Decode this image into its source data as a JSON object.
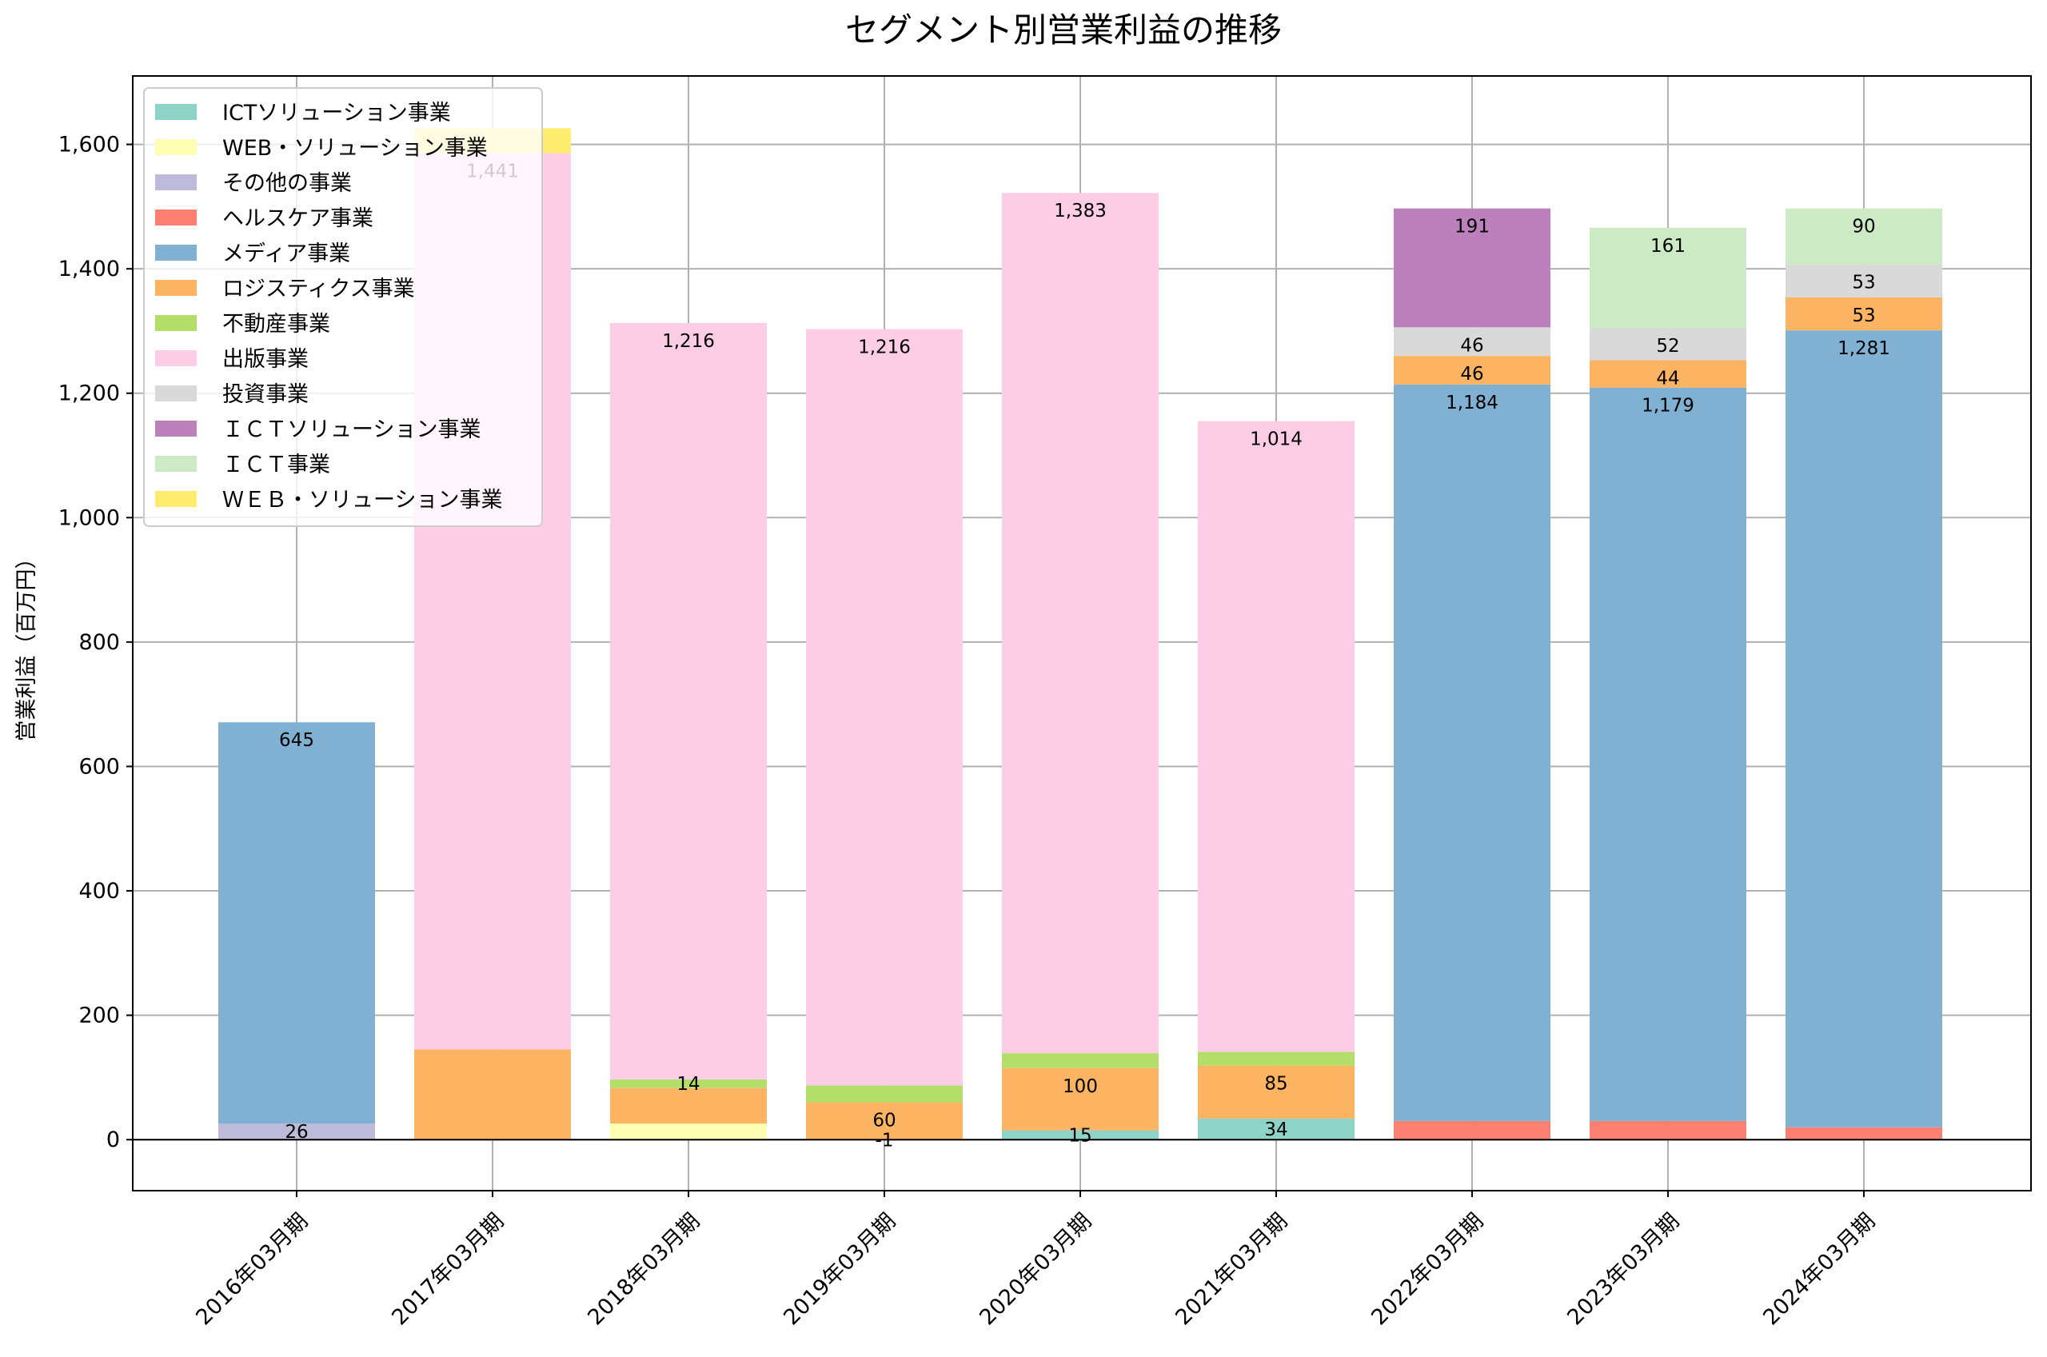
{
  "chart_data": {
    "type": "bar",
    "stacked": true,
    "title": "セグメント別営業利益の推移",
    "xlabel": "",
    "ylabel": "営業利益（百万円）",
    "ylim": [
      -82,
      1710
    ],
    "yticks": [
      0,
      200,
      400,
      600,
      800,
      1000,
      1200,
      1400,
      1600
    ],
    "ytick_labels": [
      "0",
      "200",
      "400",
      "600",
      "800",
      "1,000",
      "1,200",
      "1,400",
      "1,600"
    ],
    "grid": true,
    "legend_position": "top-left",
    "categories": [
      "2016年03月期",
      "2017年03月期",
      "2018年03月期",
      "2019年03月期",
      "2020年03月期",
      "2021年03月期",
      "2022年03月期",
      "2023年03月期",
      "2024年03月期"
    ],
    "series": [
      {
        "name": "ICTソリューション事業",
        "color": "#8dd3c7",
        "values": [
          0,
          0,
          0,
          0,
          15,
          34,
          0,
          0,
          0
        ]
      },
      {
        "name": "WEB・ソリューション事業",
        "color": "#ffffb3",
        "values": [
          0,
          0,
          26,
          -1,
          0,
          0,
          0,
          0,
          0
        ]
      },
      {
        "name": "その他の事業",
        "color": "#bebada",
        "values": [
          26,
          0,
          0,
          0,
          0,
          0,
          0,
          0,
          0
        ]
      },
      {
        "name": "ヘルスケア事業",
        "color": "#fb8072",
        "values": [
          0,
          0,
          0,
          0,
          0,
          0,
          30,
          30,
          20
        ]
      },
      {
        "name": "メディア事業",
        "color": "#80b1d3",
        "values": [
          645,
          0,
          0,
          0,
          0,
          0,
          1184,
          1179,
          1281
        ]
      },
      {
        "name": "ロジスティクス事業",
        "color": "#fdb462",
        "values": [
          0,
          145,
          57,
          60,
          100,
          85,
          46,
          44,
          53
        ]
      },
      {
        "name": "不動産事業",
        "color": "#b3de69",
        "values": [
          0,
          0,
          14,
          27,
          24,
          22,
          0,
          0,
          0
        ]
      },
      {
        "name": "出版事業",
        "color": "#fccde5",
        "values": [
          0,
          1441,
          1216,
          1216,
          1383,
          1014,
          0,
          0,
          0
        ]
      },
      {
        "name": "投資事業",
        "color": "#d9d9d9",
        "values": [
          0,
          0,
          0,
          0,
          0,
          0,
          46,
          52,
          53
        ]
      },
      {
        "name": "ＩＣＴソリューション事業",
        "color": "#bc80bd",
        "values": [
          0,
          0,
          0,
          0,
          0,
          0,
          191,
          0,
          0
        ]
      },
      {
        "name": "ＩＣＴ事業",
        "color": "#ccebc5",
        "values": [
          0,
          0,
          0,
          0,
          0,
          0,
          0,
          161,
          90
        ]
      },
      {
        "name": "ＷＥＢ・ソリューション事業",
        "color": "#ffed6f",
        "values": [
          0,
          40,
          0,
          0,
          0,
          0,
          0,
          0,
          0
        ]
      }
    ],
    "data_labels": [
      {
        "category": 0,
        "series": 2,
        "text": "26"
      },
      {
        "category": 0,
        "series": 4,
        "text": "645"
      },
      {
        "category": 1,
        "series": 7,
        "text": "1,441"
      },
      {
        "category": 2,
        "series": 6,
        "text": "14"
      },
      {
        "category": 2,
        "series": 7,
        "text": "1,216"
      },
      {
        "category": 3,
        "series": 1,
        "text": "-1"
      },
      {
        "category": 3,
        "series": 5,
        "text": "60"
      },
      {
        "category": 3,
        "series": 7,
        "text": "1,216"
      },
      {
        "category": 4,
        "series": 0,
        "text": "15"
      },
      {
        "category": 4,
        "series": 5,
        "text": "100"
      },
      {
        "category": 4,
        "series": 7,
        "text": "1,383"
      },
      {
        "category": 5,
        "series": 0,
        "text": "34"
      },
      {
        "category": 5,
        "series": 5,
        "text": "85"
      },
      {
        "category": 5,
        "series": 7,
        "text": "1,014"
      },
      {
        "category": 6,
        "series": 4,
        "text": "1,184"
      },
      {
        "category": 6,
        "series": 5,
        "text": "46"
      },
      {
        "category": 6,
        "series": 8,
        "text": "46"
      },
      {
        "category": 6,
        "series": 9,
        "text": "191"
      },
      {
        "category": 7,
        "series": 4,
        "text": "1,179"
      },
      {
        "category": 7,
        "series": 5,
        "text": "44"
      },
      {
        "category": 7,
        "series": 8,
        "text": "52"
      },
      {
        "category": 7,
        "series": 10,
        "text": "161"
      },
      {
        "category": 8,
        "series": 4,
        "text": "1,281"
      },
      {
        "category": 8,
        "series": 5,
        "text": "53"
      },
      {
        "category": 8,
        "series": 8,
        "text": "53"
      },
      {
        "category": 8,
        "series": 10,
        "text": "90"
      }
    ]
  }
}
